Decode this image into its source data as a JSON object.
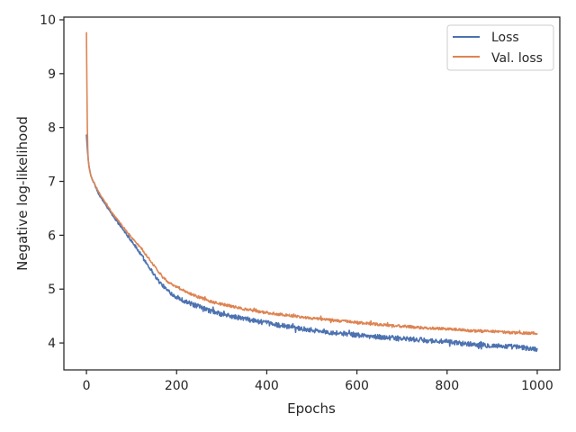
{
  "chart_data": {
    "type": "line",
    "title": "",
    "xlabel": "Epochs",
    "ylabel": "Negative log-likelihood",
    "xlim": [
      -50,
      1050
    ],
    "ylim": [
      3.5,
      10.05
    ],
    "xticks": [
      0,
      200,
      400,
      600,
      800,
      1000
    ],
    "xtick_labels": [
      "0",
      "200",
      "400",
      "600",
      "800",
      "1000"
    ],
    "yticks": [
      4,
      5,
      6,
      7,
      8,
      9,
      10
    ],
    "ytick_labels": [
      "4",
      "5",
      "6",
      "7",
      "8",
      "9",
      "10"
    ],
    "grid": false,
    "legend_position": "top-right",
    "series": [
      {
        "name": "Loss",
        "color": "#4c72b0",
        "x": [
          0,
          2,
          4,
          6,
          8,
          10,
          15,
          20,
          30,
          40,
          50,
          60,
          80,
          100,
          120,
          140,
          160,
          180,
          200,
          220,
          240,
          260,
          280,
          300,
          350,
          400,
          450,
          500,
          550,
          600,
          650,
          700,
          750,
          800,
          850,
          900,
          950,
          1000
        ],
        "y": [
          7.87,
          7.6,
          7.4,
          7.27,
          7.18,
          7.1,
          7.0,
          6.9,
          6.72,
          6.6,
          6.47,
          6.35,
          6.12,
          5.9,
          5.65,
          5.4,
          5.15,
          4.97,
          4.85,
          4.77,
          4.7,
          4.64,
          4.58,
          4.53,
          4.45,
          4.37,
          4.3,
          4.24,
          4.19,
          4.15,
          4.11,
          4.08,
          4.05,
          4.02,
          3.98,
          3.95,
          3.93,
          3.88
        ],
        "noise": 0.045
      },
      {
        "name": "Val. loss",
        "color": "#dd8452",
        "x": [
          0,
          1,
          2,
          3,
          4,
          6,
          8,
          10,
          15,
          20,
          30,
          40,
          50,
          60,
          80,
          100,
          120,
          140,
          160,
          180,
          200,
          220,
          240,
          260,
          280,
          300,
          350,
          400,
          450,
          500,
          550,
          600,
          650,
          700,
          750,
          800,
          850,
          900,
          950,
          1000
        ],
        "y": [
          9.77,
          8.8,
          8.0,
          7.6,
          7.4,
          7.25,
          7.17,
          7.1,
          7.0,
          6.92,
          6.76,
          6.63,
          6.5,
          6.38,
          6.17,
          5.96,
          5.77,
          5.55,
          5.32,
          5.14,
          5.04,
          4.96,
          4.88,
          4.82,
          4.76,
          4.72,
          4.63,
          4.56,
          4.51,
          4.46,
          4.42,
          4.38,
          4.34,
          4.31,
          4.28,
          4.26,
          4.23,
          4.21,
          4.19,
          4.18
        ],
        "noise": 0.025
      }
    ]
  }
}
